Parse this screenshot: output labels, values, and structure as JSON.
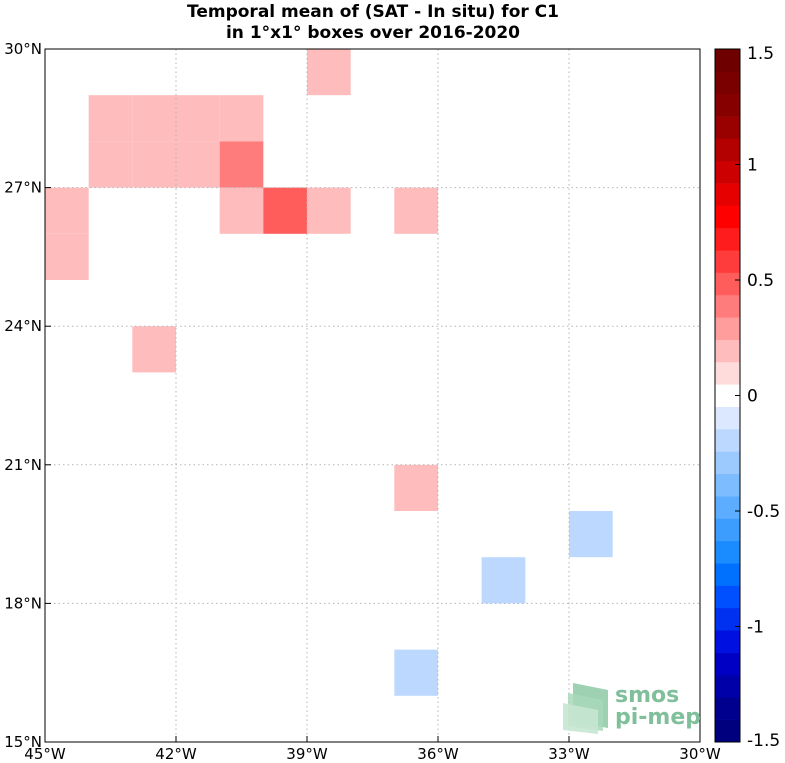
{
  "title_line1": "Temporal mean of (SAT - In situ) for C1",
  "title_line2": "in 1°x1° boxes over 2016-2020",
  "map": {
    "lon_range": [
      -45,
      -30
    ],
    "lat_range": [
      15,
      30
    ],
    "lon_ticks": [
      {
        "value": -45,
        "label": "45°W"
      },
      {
        "value": -42,
        "label": "42°W"
      },
      {
        "value": -39,
        "label": "39°W"
      },
      {
        "value": -36,
        "label": "36°W"
      },
      {
        "value": -33,
        "label": "33°W"
      },
      {
        "value": -30,
        "label": "30°W"
      }
    ],
    "lat_ticks": [
      {
        "value": 30,
        "label": "30°N"
      },
      {
        "value": 27,
        "label": "27°N"
      },
      {
        "value": 24,
        "label": "24°N"
      },
      {
        "value": 21,
        "label": "21°N"
      },
      {
        "value": 18,
        "label": "18°N"
      },
      {
        "value": 15,
        "label": "15°N"
      }
    ],
    "grid": "dotted",
    "boxes": [
      {
        "lon": -39,
        "lat": 29,
        "value": 0.15
      },
      {
        "lon": -44,
        "lat": 28,
        "value": 0.15
      },
      {
        "lon": -43,
        "lat": 28,
        "value": 0.15
      },
      {
        "lon": -42,
        "lat": 28,
        "value": 0.15
      },
      {
        "lon": -41,
        "lat": 28,
        "value": 0.15
      },
      {
        "lon": -44,
        "lat": 27,
        "value": 0.15
      },
      {
        "lon": -43,
        "lat": 27,
        "value": 0.15
      },
      {
        "lon": -42,
        "lat": 27,
        "value": 0.15
      },
      {
        "lon": -41,
        "lat": 27,
        "value": 0.35
      },
      {
        "lon": -45,
        "lat": 26,
        "value": 0.15
      },
      {
        "lon": -41,
        "lat": 26,
        "value": 0.15
      },
      {
        "lon": -40,
        "lat": 26,
        "value": 0.45
      },
      {
        "lon": -39,
        "lat": 26,
        "value": 0.15
      },
      {
        "lon": -37,
        "lat": 26,
        "value": 0.15
      },
      {
        "lon": -45,
        "lat": 25,
        "value": 0.15
      },
      {
        "lon": -43,
        "lat": 23,
        "value": 0.15
      },
      {
        "lon": -37,
        "lat": 20,
        "value": 0.15
      },
      {
        "lon": -33,
        "lat": 19,
        "value": -0.15
      },
      {
        "lon": -35,
        "lat": 18,
        "value": -0.15
      },
      {
        "lon": -37,
        "lat": 16,
        "value": -0.15
      }
    ]
  },
  "colorbar": {
    "range": [
      -1.5,
      1.5
    ],
    "ticks": [
      {
        "value": 1.5,
        "label": "1.5"
      },
      {
        "value": 1,
        "label": "1"
      },
      {
        "value": 0.5,
        "label": "0.5"
      },
      {
        "value": 0,
        "label": "0"
      },
      {
        "value": -0.5,
        "label": "-0.5"
      },
      {
        "value": -1,
        "label": "-1"
      },
      {
        "value": -1.5,
        "label": "-1.5"
      }
    ],
    "colors_bottom_to_top": [
      "#00007f",
      "#00008f",
      "#0000a8",
      "#0000c4",
      "#0010e0",
      "#0030f0",
      "#0050ff",
      "#0070ff",
      "#1a8cff",
      "#3d9dff",
      "#5cacff",
      "#7cbcff",
      "#9ccaff",
      "#bcd8ff",
      "#dbe8ff",
      "#ffffff",
      "#ffdcdc",
      "#ffbcbc",
      "#ff9c9c",
      "#ff7c7c",
      "#ff5c5c",
      "#ff3c3c",
      "#ff1c1c",
      "#ff0000",
      "#e60000",
      "#cc0000",
      "#b30000",
      "#990000",
      "#870000",
      "#7a0000",
      "#6e0000"
    ]
  },
  "logo": {
    "line1": "smos",
    "line2": "pi-mep"
  }
}
